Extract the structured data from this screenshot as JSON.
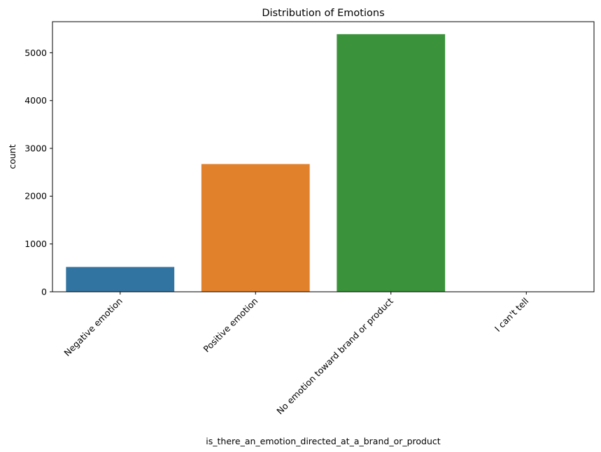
{
  "chart_data": {
    "type": "bar",
    "title": "Distribution of Emotions",
    "xlabel": "is_there_an_emotion_directed_at_a_brand_or_product",
    "ylabel": "count",
    "categories": [
      "Negative emotion",
      "Positive emotion",
      "No emotion toward brand or product",
      "I can't tell"
    ],
    "values": [
      519,
      2672,
      5389,
      0
    ],
    "colors": [
      "#3274a1",
      "#e1812c",
      "#3a923a",
      "#c03d3e"
    ],
    "ylim": [
      0,
      5650
    ],
    "yticks": [
      0,
      1000,
      2000,
      3000,
      4000,
      5000
    ],
    "grid": false,
    "legend": "none"
  }
}
